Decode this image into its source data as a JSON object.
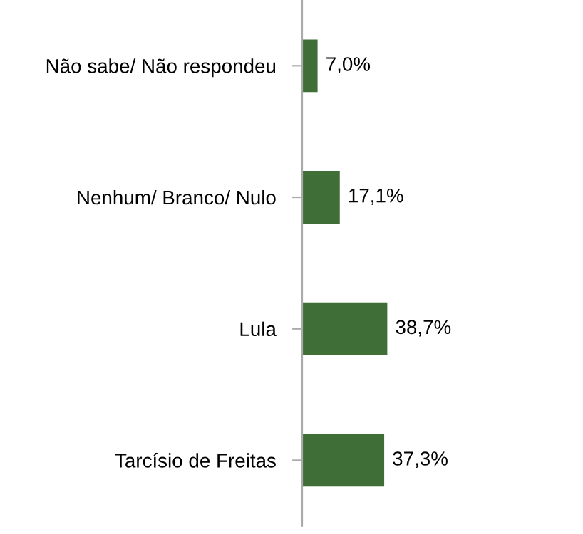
{
  "chart_data": {
    "type": "bar",
    "orientation": "horizontal",
    "categories": [
      "Não sabe/ Não respondeu",
      "Nenhum/ Branco/ Nulo",
      "Lula",
      "Tarcísio de Freitas"
    ],
    "values": [
      7.0,
      17.1,
      38.7,
      37.3
    ],
    "value_labels": [
      "7,0%",
      "17,1%",
      "38,7%",
      "37,3%"
    ],
    "color": "#3f6e36",
    "grid": false,
    "legend": false
  }
}
